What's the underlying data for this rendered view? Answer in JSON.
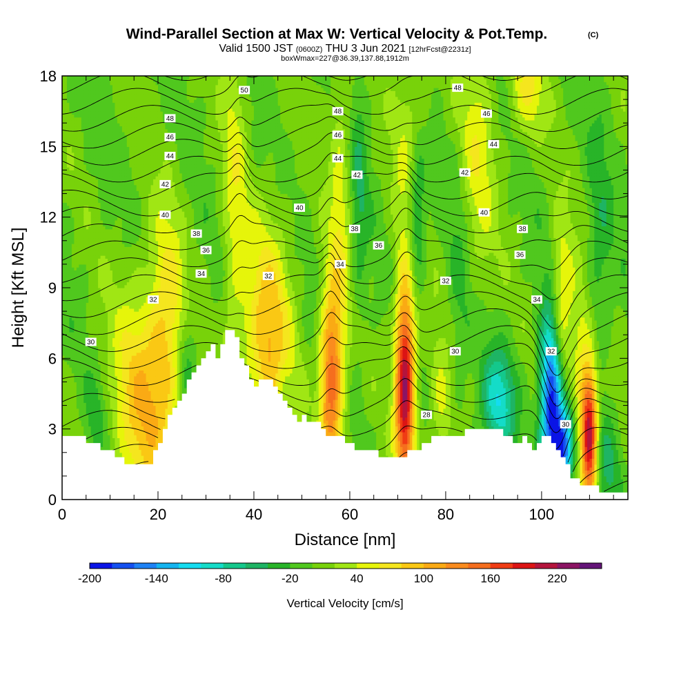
{
  "title": {
    "main": "Wind-Parallel Section at Max W: Vertical Velocity & Pot.Temp.",
    "copyright": "(C)",
    "valid_prefix": "Valid 1500 JST",
    "valid_utc": "(0600Z)",
    "valid_date": "THU 3 Jun 2021",
    "forecast": "[12hrFcst@2231z]",
    "box": "boxWmax=227@36.39,137.88,1912m"
  },
  "chart_data": {
    "type": "heatmap",
    "xlabel": "Distance [nm]",
    "ylabel": "Height [Kft MSL]",
    "xlim": [
      0,
      118
    ],
    "ylim": [
      0,
      18
    ],
    "x_ticks": [
      0,
      20,
      40,
      60,
      80,
      100
    ],
    "x_tick_labels": [
      "0",
      "20",
      "40",
      "60",
      "80",
      "100"
    ],
    "y_ticks": [
      0,
      3,
      6,
      9,
      12,
      15,
      18
    ],
    "y_tick_labels": [
      "0",
      "3",
      "6",
      "9",
      "12",
      "15",
      "18"
    ],
    "colorbar": {
      "title": "Vertical Velocity [cm/s]",
      "levels": [
        -200,
        -180,
        -160,
        -140,
        -120,
        -100,
        -80,
        -60,
        -40,
        -20,
        0,
        20,
        40,
        60,
        80,
        100,
        120,
        140,
        160,
        180,
        200,
        220,
        240,
        260
      ],
      "tick_values": [
        -200,
        -140,
        -80,
        -20,
        40,
        100,
        160,
        220
      ],
      "tick_labels": [
        "-200",
        "-140",
        "-80",
        "-20",
        "40",
        "100",
        "160",
        "220"
      ],
      "colors": [
        "#0a14e6",
        "#1450f0",
        "#1e82f5",
        "#14b4f0",
        "#14dcf0",
        "#14dcc8",
        "#14c88c",
        "#1eb464",
        "#28b428",
        "#50c81e",
        "#78d20a",
        "#a0e614",
        "#e6f50a",
        "#f5e61e",
        "#fac814",
        "#faaa14",
        "#fa8c1e",
        "#f56e1e",
        "#f03c14",
        "#dc1414",
        "#b4143c",
        "#8c1464",
        "#641478"
      ]
    },
    "background_level": 0,
    "terrain_kft": [
      [
        0,
        2.6
      ],
      [
        4,
        2.6
      ],
      [
        7,
        2.3
      ],
      [
        10,
        2.0
      ],
      [
        12,
        1.8
      ],
      [
        14,
        1.4
      ],
      [
        16,
        1.4
      ],
      [
        18,
        1.4
      ],
      [
        19,
        2.0
      ],
      [
        21,
        3.0
      ],
      [
        23,
        4.0
      ],
      [
        25,
        4.6
      ],
      [
        27,
        5.3
      ],
      [
        29,
        6.0
      ],
      [
        31,
        6.5
      ],
      [
        32,
        6.0
      ],
      [
        33,
        6.6
      ],
      [
        34,
        7.2
      ],
      [
        36,
        7.0
      ],
      [
        37,
        6.0
      ],
      [
        38,
        5.6
      ],
      [
        39,
        5.0
      ],
      [
        40,
        4.9
      ],
      [
        42,
        5.0
      ],
      [
        44,
        4.9
      ],
      [
        45,
        4.5
      ],
      [
        46,
        4.1
      ],
      [
        47,
        3.9
      ],
      [
        48,
        3.6
      ],
      [
        49,
        3.3
      ],
      [
        50,
        3.5
      ],
      [
        52,
        3.3
      ],
      [
        54,
        3.0
      ],
      [
        56,
        2.6
      ],
      [
        58,
        2.6
      ],
      [
        60,
        2.3
      ],
      [
        62,
        2.0
      ],
      [
        65,
        2.0
      ],
      [
        67,
        1.7
      ],
      [
        70,
        1.7
      ],
      [
        72,
        2.0
      ],
      [
        75,
        2.3
      ],
      [
        77,
        2.6
      ],
      [
        82,
        2.6
      ],
      [
        85,
        3.0
      ],
      [
        90,
        3.0
      ],
      [
        92,
        2.8
      ],
      [
        94,
        2.3
      ],
      [
        96,
        2.6
      ],
      [
        98,
        2.0
      ],
      [
        100,
        2.6
      ],
      [
        101,
        2.6
      ],
      [
        103,
        2.0
      ],
      [
        105,
        1.5
      ],
      [
        106,
        1.0
      ],
      [
        108,
        0.7
      ],
      [
        110,
        0.7
      ],
      [
        112,
        0.3
      ],
      [
        114,
        0.3
      ],
      [
        118,
        0.3
      ]
    ],
    "updraft_cores": [
      {
        "x": 17,
        "y": 4.2,
        "value": 90,
        "sx": 4.5,
        "sy": 3.5
      },
      {
        "x": 22,
        "y": 7.5,
        "value": 60,
        "sx": 2.5,
        "sy": 3.5
      },
      {
        "x": 36,
        "y": 12.5,
        "value": 45,
        "sx": 1.8,
        "sy": 6.5
      },
      {
        "x": 43,
        "y": 6.5,
        "value": 100,
        "sx": 3.5,
        "sy": 3.5
      },
      {
        "x": 56,
        "y": 5.0,
        "value": 150,
        "sx": 1.6,
        "sy": 3.0
      },
      {
        "x": 58,
        "y": 12.0,
        "value": 45,
        "sx": 1.5,
        "sy": 7.0
      },
      {
        "x": 71.5,
        "y": 4.8,
        "value": 220,
        "sx": 1.4,
        "sy": 3.0
      },
      {
        "x": 73,
        "y": 14.0,
        "value": 50,
        "sx": 2.5,
        "sy": 5.0
      },
      {
        "x": 79,
        "y": 3.8,
        "value": 45,
        "sx": 1.6,
        "sy": 2.0
      },
      {
        "x": 86,
        "y": 14.5,
        "value": 50,
        "sx": 3.0,
        "sy": 4.0
      },
      {
        "x": 104,
        "y": 8.0,
        "value": 90,
        "sx": 1.8,
        "sy": 2.5
      },
      {
        "x": 110,
        "y": 2.8,
        "value": 220,
        "sx": 1.2,
        "sy": 2.2
      },
      {
        "x": 108,
        "y": 5.5,
        "value": 50,
        "sx": 1.2,
        "sy": 2.5
      },
      {
        "x": 97,
        "y": 17.5,
        "value": 60,
        "sx": 2.5,
        "sy": 1.5
      }
    ],
    "downdraft_cores": [
      {
        "x": 102,
        "y": 4.3,
        "value": -200,
        "sx": 1.6,
        "sy": 2.8
      },
      {
        "x": 104.5,
        "y": 2.2,
        "value": -160,
        "sx": 1.5,
        "sy": 1.3
      },
      {
        "x": 91,
        "y": 4.2,
        "value": -90,
        "sx": 2.5,
        "sy": 1.5
      },
      {
        "x": 74,
        "y": 12.0,
        "value": -90,
        "sx": 1.5,
        "sy": 2.5
      },
      {
        "x": 26,
        "y": 6.0,
        "value": -45,
        "sx": 1.5,
        "sy": 1.5
      },
      {
        "x": 62,
        "y": 12.5,
        "value": -35,
        "sx": 1.2,
        "sy": 4.0
      },
      {
        "x": 46,
        "y": 4.0,
        "value": -30,
        "sx": 1.2,
        "sy": 1.5
      },
      {
        "x": 7,
        "y": 3.5,
        "value": -30,
        "sx": 1.5,
        "sy": 1.2
      },
      {
        "x": 114,
        "y": 1.5,
        "value": -35,
        "sx": 2.0,
        "sy": 1.5
      },
      {
        "x": 83,
        "y": 10.0,
        "value": -30,
        "sx": 1.8,
        "sy": 5.0
      },
      {
        "x": 112,
        "y": 10.0,
        "value": -35,
        "sx": 1.8,
        "sy": 4.0
      }
    ],
    "theta_contours": {
      "interval": 1,
      "labeled_values": [
        28,
        30,
        32,
        34,
        36,
        38,
        40,
        42,
        44,
        46,
        48,
        50
      ],
      "labels": [
        {
          "x": 6,
          "y": 6.7,
          "text": "30"
        },
        {
          "x": 19,
          "y": 8.5,
          "text": "32"
        },
        {
          "x": 29,
          "y": 9.6,
          "text": "34"
        },
        {
          "x": 30,
          "y": 10.6,
          "text": "36"
        },
        {
          "x": 28,
          "y": 11.3,
          "text": "38"
        },
        {
          "x": 21.5,
          "y": 12.1,
          "text": "40"
        },
        {
          "x": 21.5,
          "y": 13.4,
          "text": "42"
        },
        {
          "x": 22.5,
          "y": 14.6,
          "text": "44"
        },
        {
          "x": 22.5,
          "y": 15.4,
          "text": "46"
        },
        {
          "x": 22.5,
          "y": 16.2,
          "text": "48"
        },
        {
          "x": 38,
          "y": 17.4,
          "text": "50"
        },
        {
          "x": 43,
          "y": 9.5,
          "text": "32"
        },
        {
          "x": 49.5,
          "y": 12.4,
          "text": "40"
        },
        {
          "x": 58,
          "y": 10.0,
          "text": "34"
        },
        {
          "x": 61,
          "y": 11.5,
          "text": "38"
        },
        {
          "x": 66,
          "y": 10.8,
          "text": "36"
        },
        {
          "x": 57.5,
          "y": 14.5,
          "text": "44"
        },
        {
          "x": 57.5,
          "y": 15.5,
          "text": "46"
        },
        {
          "x": 57.5,
          "y": 16.5,
          "text": "48"
        },
        {
          "x": 61.5,
          "y": 13.8,
          "text": "42"
        },
        {
          "x": 76,
          "y": 3.6,
          "text": "28"
        },
        {
          "x": 82,
          "y": 6.3,
          "text": "30"
        },
        {
          "x": 80,
          "y": 9.3,
          "text": "32"
        },
        {
          "x": 84,
          "y": 13.9,
          "text": "42"
        },
        {
          "x": 82.5,
          "y": 17.5,
          "text": "48"
        },
        {
          "x": 88,
          "y": 12.2,
          "text": "40"
        },
        {
          "x": 88.5,
          "y": 16.4,
          "text": "46"
        },
        {
          "x": 90,
          "y": 15.1,
          "text": "44"
        },
        {
          "x": 95.5,
          "y": 10.4,
          "text": "36"
        },
        {
          "x": 96,
          "y": 11.5,
          "text": "38"
        },
        {
          "x": 99,
          "y": 8.5,
          "text": "34"
        },
        {
          "x": 102,
          "y": 6.3,
          "text": "32"
        },
        {
          "x": 105,
          "y": 3.2,
          "text": "30"
        }
      ]
    }
  }
}
